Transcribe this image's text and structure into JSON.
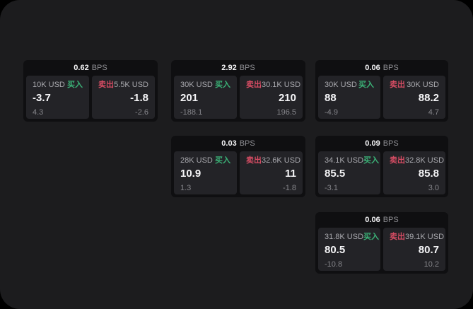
{
  "colors": {
    "panel_bg": "#1c1c1e",
    "card_bg": "#0f0f11",
    "tile_bg": "#232327",
    "buy_green": "#3bb277",
    "sell_red": "#d54c63"
  },
  "labels": {
    "bps_unit": "BPS",
    "buy": "买入",
    "sell": "卖出"
  },
  "cards": [
    {
      "bps_value": "0.62",
      "bps_unit": "BPS",
      "buy": {
        "amount": "10K USD",
        "side": "买入",
        "value": "-3.7",
        "change": "4.3"
      },
      "sell": {
        "side": "卖出",
        "amount": "5.5K USD",
        "value": "-1.8",
        "change": "-2.6"
      }
    },
    {
      "bps_value": "2.92",
      "bps_unit": "BPS",
      "buy": {
        "amount": "30K USD",
        "side": "买入",
        "value": "201",
        "change": "-188.1"
      },
      "sell": {
        "side": "卖出",
        "amount": "30.1K USD",
        "value": "210",
        "change": "196.5"
      }
    },
    {
      "bps_value": "0.06",
      "bps_unit": "BPS",
      "buy": {
        "amount": "30K USD",
        "side": "买入",
        "value": "88",
        "change": "-4.9"
      },
      "sell": {
        "side": "卖出",
        "amount": "30K USD",
        "value": "88.2",
        "change": "4.7"
      }
    },
    {
      "bps_value": "0.03",
      "bps_unit": "BPS",
      "buy": {
        "amount": "28K USD",
        "side": "买入",
        "value": "10.9",
        "change": "1.3"
      },
      "sell": {
        "side": "卖出",
        "amount": "32.6K USD",
        "value": "11",
        "change": "-1.8"
      }
    },
    {
      "bps_value": "0.09",
      "bps_unit": "BPS",
      "buy": {
        "amount": "34.1K USD",
        "side": "买入",
        "value": "85.5",
        "change": "-3.1"
      },
      "sell": {
        "side": "卖出",
        "amount": "32.8K USD",
        "value": "85.8",
        "change": "3.0"
      }
    },
    {
      "bps_value": "0.06",
      "bps_unit": "BPS",
      "buy": {
        "amount": "31.8K USD",
        "side": "买入",
        "value": "80.5",
        "change": "-10.8"
      },
      "sell": {
        "side": "卖出",
        "amount": "39.1K USD",
        "value": "80.7",
        "change": "10.2"
      }
    }
  ]
}
